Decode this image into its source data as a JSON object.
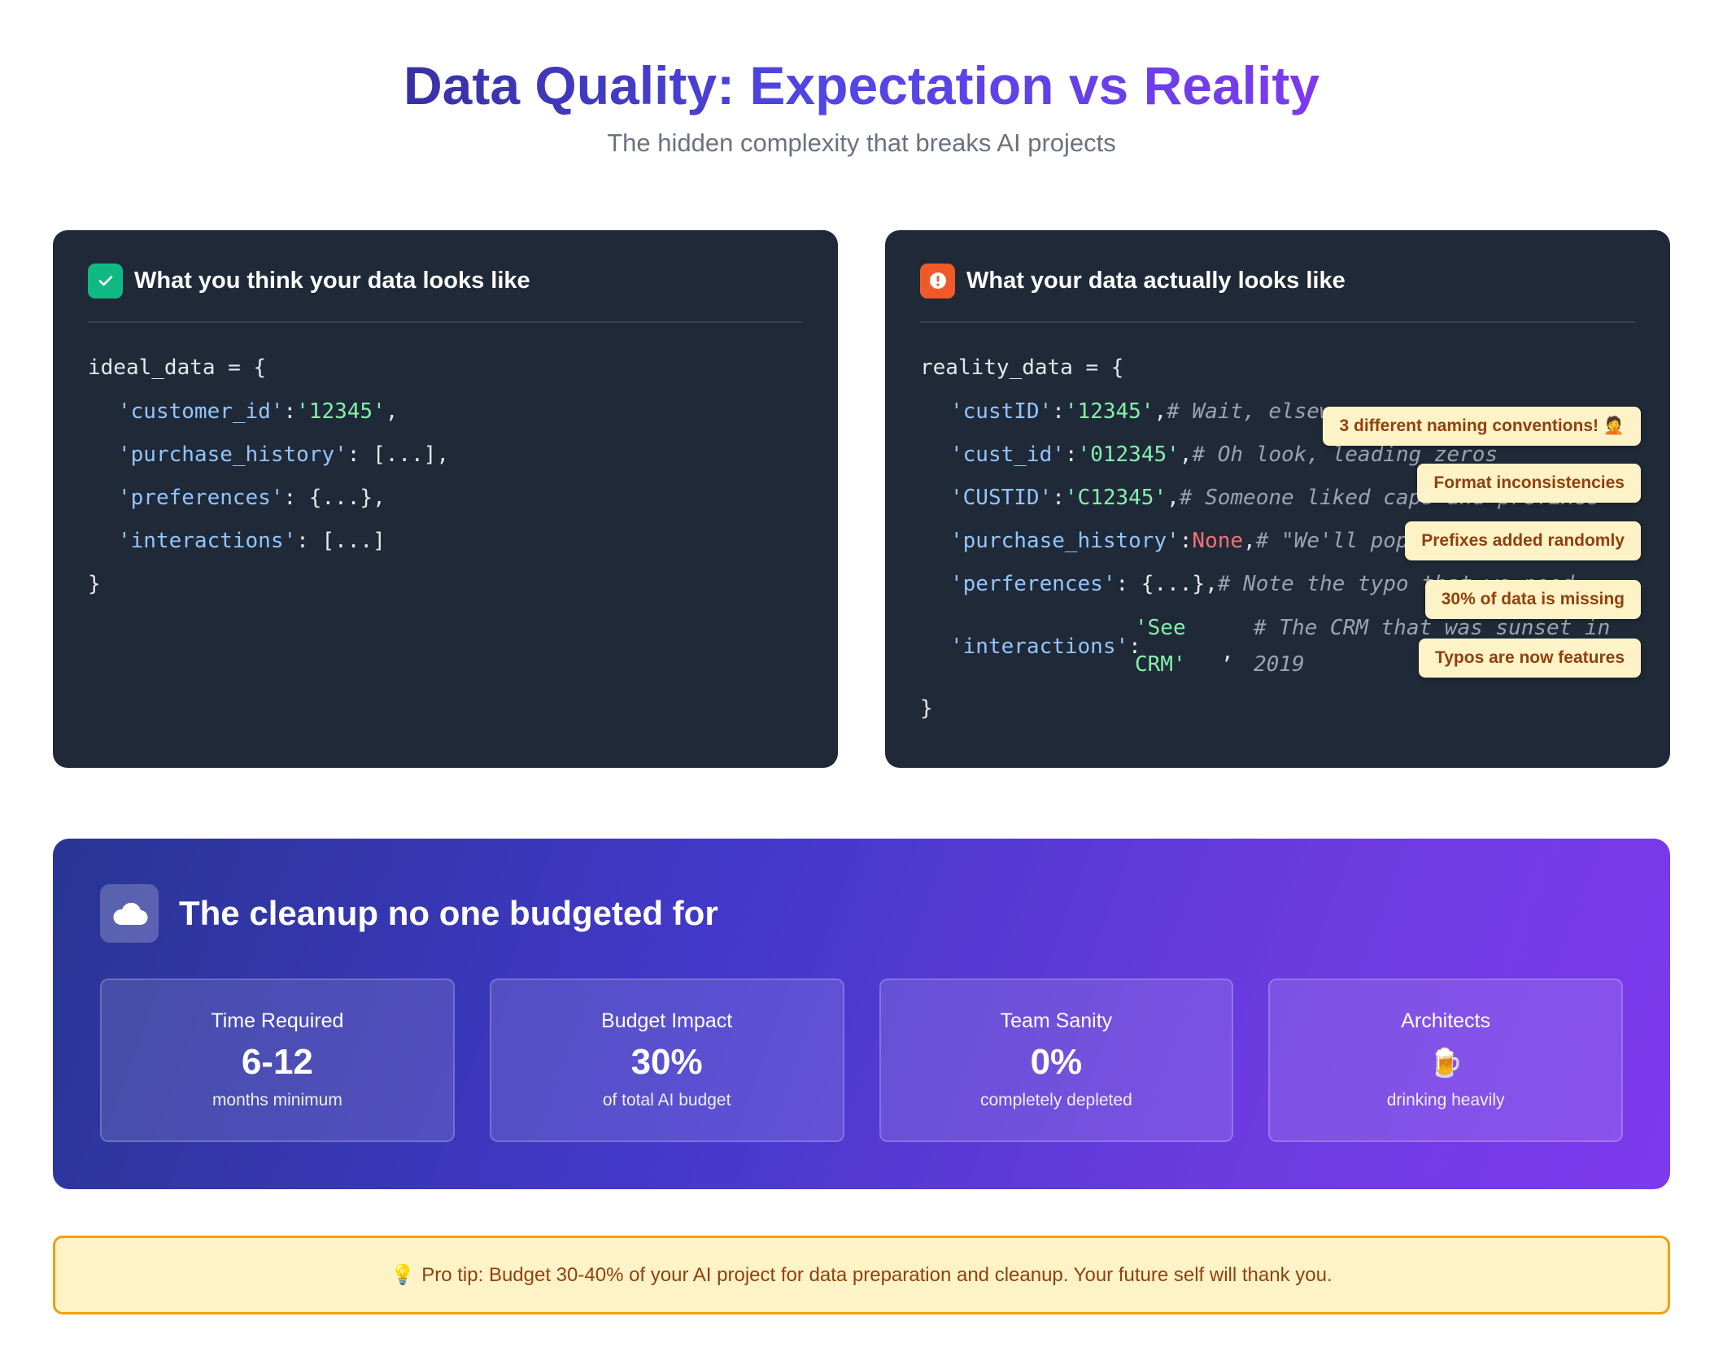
{
  "header": {
    "title": "Data Quality: Expectation vs Reality",
    "subtitle": "The hidden complexity that breaks AI projects"
  },
  "expectation": {
    "title": "What you think your data looks like",
    "icon": "check-icon",
    "code": {
      "open": "ideal_data = {",
      "customer_id_key": "'customer_id'",
      "customer_id_val": "'12345'",
      "purchase_history_key": "'purchase_history'",
      "purchase_history_val": ": [...],",
      "preferences_key": "'preferences'",
      "preferences_val": ": {...},",
      "interactions_key": "'interactions'",
      "interactions_val": ": [...]",
      "close": "}"
    }
  },
  "reality": {
    "title": "What your data actually looks like",
    "icon": "alert-icon",
    "code": {
      "open": "reality_data = {",
      "l1_key": "'custID'",
      "l1_val": "'12345'",
      "l1_comment": "# Wait, elsew",
      "l2_key": "'cust_id'",
      "l2_val": "'012345'",
      "l2_comment": "# Oh look, leading zeros",
      "l3_key": "'CUSTID'",
      "l3_val": "'C12345'",
      "l3_comment": "# Someone liked caps and prefixes",
      "l4_key": "'purchase_history'",
      "l4_val": "None",
      "l4_comment": "# \"We'll popu",
      "l5_key": "'perferences'",
      "l5_val": ": {...},",
      "l5_comment": "# Note the typo that we need",
      "l6_key": "'interactions'",
      "l6_val_a": "'See",
      "l6_val_b": "CRM'",
      "l6_comment_a": "# The CRM that was sunset in",
      "l6_comment_b": "2019",
      "close": "}"
    },
    "annotations": [
      "3 different naming conventions! 🤦",
      "Format inconsistencies",
      "Prefixes added randomly",
      "30% of data is missing",
      "Typos are now features"
    ]
  },
  "cleanup": {
    "title": "The cleanup no one budgeted for",
    "icon": "cloud-icon",
    "stats": [
      {
        "label": "Time Required",
        "value": "6-12",
        "sub": "months minimum"
      },
      {
        "label": "Budget Impact",
        "value": "30%",
        "sub": "of total AI budget"
      },
      {
        "label": "Team Sanity",
        "value": "0%",
        "sub": "completely depleted"
      },
      {
        "label": "Architects",
        "emoji": "🍺",
        "sub": "drinking heavily"
      }
    ]
  },
  "tip": {
    "icon": "💡",
    "text": "Pro tip: Budget 30-40% of your AI project for data preparation and cleanup. Your future self will thank you."
  }
}
